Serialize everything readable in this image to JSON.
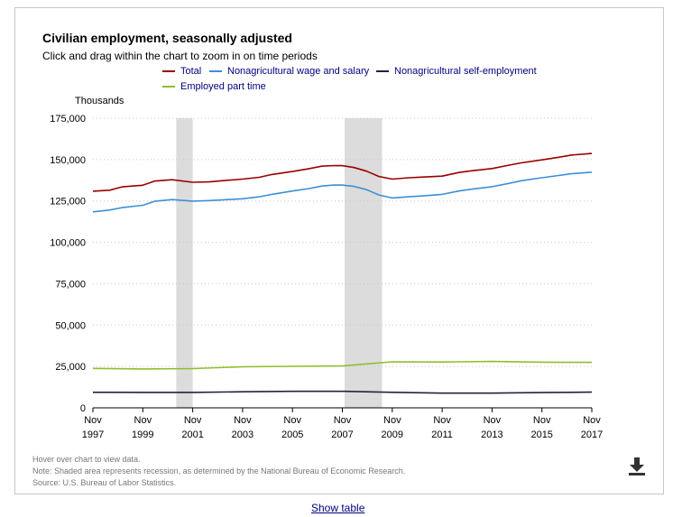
{
  "chart_data": {
    "type": "line",
    "title": "Civilian employment, seasonally adjusted",
    "subtitle": "Click and drag within the chart to zoom in on time periods",
    "ylabel": "Thousands",
    "xlabel": "",
    "ylim": [
      0,
      175000
    ],
    "yticks": [
      "0",
      "25,000",
      "50,000",
      "75,000",
      "100,000",
      "125,000",
      "150,000",
      "175,000"
    ],
    "ytick_values": [
      0,
      25000,
      50000,
      75000,
      100000,
      125000,
      150000,
      175000
    ],
    "xlim": [
      1997.83,
      2017.83
    ],
    "xticks": [
      {
        "month": "Nov",
        "year": "1997",
        "x": 1997.83
      },
      {
        "month": "Nov",
        "year": "1999",
        "x": 1999.83
      },
      {
        "month": "Nov",
        "year": "2001",
        "x": 2001.83
      },
      {
        "month": "Nov",
        "year": "2003",
        "x": 2003.83
      },
      {
        "month": "Nov",
        "year": "2005",
        "x": 2005.83
      },
      {
        "month": "Nov",
        "year": "2007",
        "x": 2007.83
      },
      {
        "month": "Nov",
        "year": "2009",
        "x": 2009.83
      },
      {
        "month": "Nov",
        "year": "2011",
        "x": 2011.83
      },
      {
        "month": "Nov",
        "year": "2013",
        "x": 2013.83
      },
      {
        "month": "Nov",
        "year": "2015",
        "x": 2015.83
      },
      {
        "month": "Nov",
        "year": "2017",
        "x": 2017.83
      }
    ],
    "grid": true,
    "legend_position": "top",
    "recessions": [
      [
        2001.17,
        2001.83
      ],
      [
        2007.92,
        2009.42
      ]
    ],
    "series": [
      {
        "name": "Total",
        "color": "#990000",
        "x": [
          1997.83,
          1998.5,
          1999.0,
          1999.83,
          2000.3,
          2001.0,
          2001.83,
          2002.5,
          2003.0,
          2003.83,
          2004.5,
          2005.0,
          2005.83,
          2006.5,
          2007.0,
          2007.5,
          2007.83,
          2008.3,
          2008.8,
          2009.3,
          2009.83,
          2010.5,
          2011.0,
          2011.83,
          2012.5,
          2013.0,
          2013.83,
          2014.5,
          2015.0,
          2015.83,
          2016.5,
          2017.0,
          2017.83
        ],
        "values": [
          130900,
          131500,
          133500,
          134500,
          137000,
          137800,
          136300,
          136500,
          137200,
          138200,
          139300,
          141000,
          142800,
          144500,
          146000,
          146400,
          146300,
          145200,
          143000,
          139800,
          138200,
          139000,
          139400,
          140000,
          142200,
          143200,
          144600,
          146600,
          148000,
          149800,
          151400,
          152700,
          153700
        ]
      },
      {
        "name": "Nonagricultural wage and salary",
        "color": "#3d8fd6",
        "x": [
          1997.83,
          1998.5,
          1999.0,
          1999.83,
          2000.3,
          2001.0,
          2001.83,
          2002.5,
          2003.0,
          2003.83,
          2004.5,
          2005.0,
          2005.83,
          2006.5,
          2007.0,
          2007.5,
          2007.83,
          2008.3,
          2008.8,
          2009.3,
          2009.83,
          2010.5,
          2011.0,
          2011.83,
          2012.5,
          2013.0,
          2013.83,
          2014.5,
          2015.0,
          2015.83,
          2016.5,
          2017.0,
          2017.83
        ],
        "values": [
          118400,
          119500,
          121000,
          122400,
          124800,
          125800,
          124900,
          125200,
          125600,
          126300,
          127500,
          129000,
          131000,
          132500,
          134000,
          134600,
          134600,
          133800,
          131800,
          128600,
          126800,
          127500,
          128000,
          129000,
          131000,
          132100,
          133600,
          135600,
          137200,
          139000,
          140400,
          141400,
          142400
        ]
      },
      {
        "name": "Nonagricultural self-employment",
        "color": "#222244",
        "x": [
          1997.83,
          1999.83,
          2001.83,
          2003.83,
          2005.83,
          2007.83,
          2009.83,
          2011.83,
          2013.83,
          2015.83,
          2017.83
        ],
        "values": [
          9400,
          9300,
          9300,
          9700,
          10000,
          10000,
          9400,
          8900,
          8900,
          9200,
          9500
        ]
      },
      {
        "name": "Employed part time",
        "color": "#8fbf2b",
        "x": [
          1997.83,
          1999.83,
          2001.83,
          2003.83,
          2005.83,
          2007.83,
          2009.83,
          2011.83,
          2013.83,
          2015.83,
          2017.83
        ],
        "values": [
          23800,
          23500,
          23700,
          24800,
          25100,
          25300,
          27800,
          27700,
          28000,
          27600,
          27500
        ]
      }
    ]
  },
  "legend": [
    {
      "label": "Total",
      "color": "#990000"
    },
    {
      "label": "Nonagricultural wage and salary",
      "color": "#3d8fd6"
    },
    {
      "label": "Nonagricultural self-employment",
      "color": "#222244"
    },
    {
      "label": "Employed part time",
      "color": "#8fbf2b"
    }
  ],
  "notes": {
    "hover": "Hover over chart to view data.",
    "note": "Note: Shaded area represents recession, as determined by the National Bureau of Economic Research.",
    "source": "Source: U.S. Bureau of Labor Statistics."
  },
  "show_table_label": "Show table",
  "icons": {
    "download": "download-icon"
  }
}
